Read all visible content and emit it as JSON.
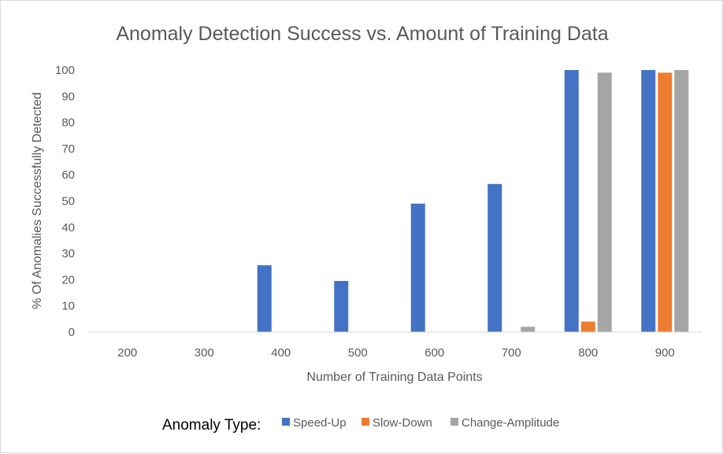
{
  "chart_data": {
    "type": "bar",
    "title": "Anomaly Detection Success vs. Amount of Training Data",
    "xlabel": "Number of Training Data Points",
    "ylabel": "% Of Anomalies Successfully Detected",
    "categories": [
      "200",
      "300",
      "400",
      "500",
      "600",
      "700",
      "800",
      "900"
    ],
    "ylim": [
      0,
      100
    ],
    "yticks": [
      0,
      10,
      20,
      30,
      40,
      50,
      60,
      70,
      80,
      90,
      100
    ],
    "grid": false,
    "legend_title": "Anomaly Type:",
    "legend_position": "bottom",
    "series": [
      {
        "name": "Speed-Up",
        "color": "#4472C4",
        "values": [
          0,
          0,
          25.5,
          19.5,
          49,
          56.5,
          100,
          100
        ]
      },
      {
        "name": "Slow-Down",
        "color": "#ED7D31",
        "values": [
          0,
          0,
          0,
          0,
          0,
          0,
          4,
          99
        ]
      },
      {
        "name": "Change-Amplitude",
        "color": "#A5A5A5",
        "values": [
          0,
          0,
          0,
          0,
          0,
          2,
          99,
          100
        ]
      }
    ]
  }
}
